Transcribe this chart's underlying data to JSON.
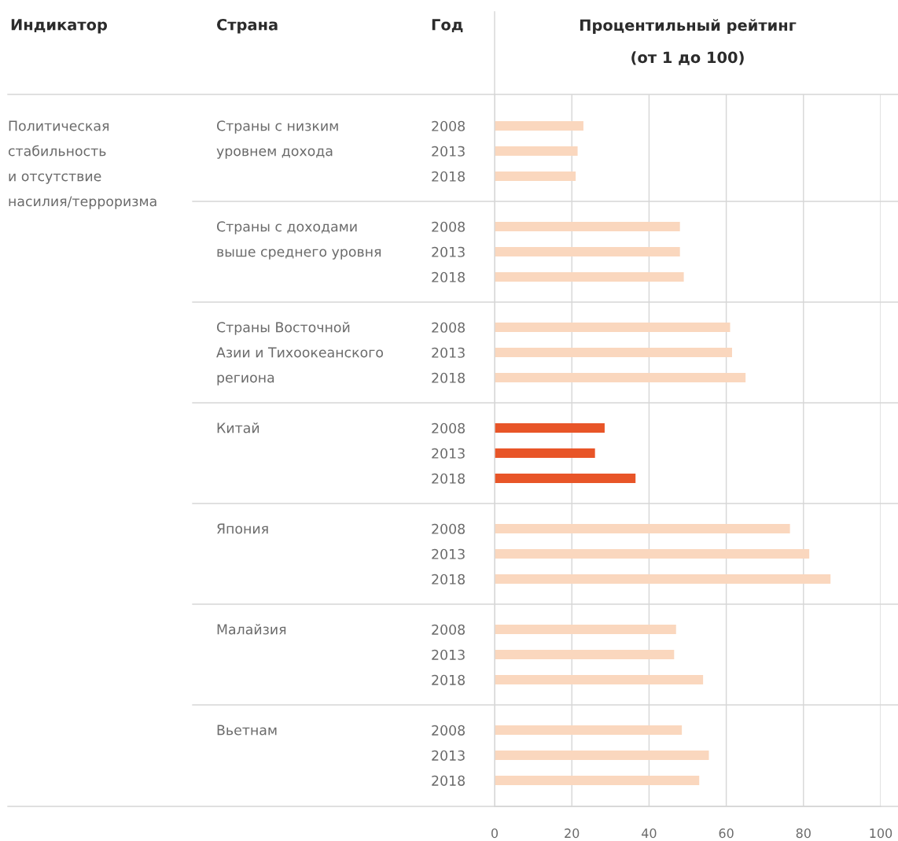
{
  "chart_data": {
    "type": "bar",
    "orientation": "horizontal",
    "xlabel": "Процентильный рейтинг\n(от 1 до 100)",
    "ylabel": "Год",
    "annotations": [
      "Индикатор",
      "Страна",
      "Политическая\nстабильность\nи отсутствие\nнасилия/терроризма",
      "Страны с низким\nуровнем дохода",
      "Страны с доходами\nвыше среднего уровня",
      "Страны Восточной\nАзии и Тихоокеанского\nрегиона",
      "Китай",
      "Япония",
      "Малайзия",
      "Вьетнам"
    ],
    "categories": [
      "2008",
      "2013",
      "2018",
      "2008",
      "2013",
      "2018",
      "2008",
      "2013",
      "2018",
      "2008",
      "2013",
      "2018",
      "2008",
      "2013",
      "2018",
      "2008",
      "2013",
      "2018",
      "2008",
      "2013",
      "2018"
    ],
    "values": [
      23,
      21.5,
      21,
      48,
      48,
      49,
      61,
      61.5,
      65,
      28.5,
      26,
      36.5,
      76.5,
      81.5,
      87,
      47,
      46.5,
      54,
      48.5,
      55.5,
      53
    ],
    "colors": [
      "#fad7be",
      "#fad7be",
      "#fad7be",
      "#fad7be",
      "#fad7be",
      "#fad7be",
      "#fad7be",
      "#fad7be",
      "#fad7be",
      "#e85528",
      "#e85528",
      "#e85528",
      "#fad7be",
      "#fad7be",
      "#fad7be",
      "#fad7be",
      "#fad7be",
      "#fad7be",
      "#fad7be",
      "#fad7be",
      "#fad7be"
    ],
    "xlim": [
      0,
      100
    ],
    "xticks": [
      0,
      20,
      40,
      60,
      80,
      100
    ],
    "grid": "x"
  }
}
